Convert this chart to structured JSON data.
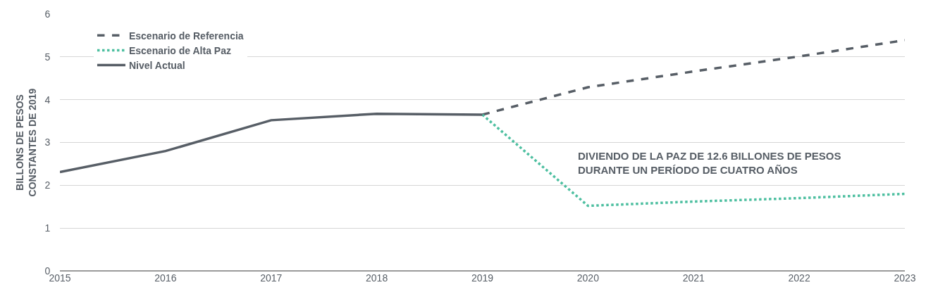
{
  "chart_data": {
    "type": "line",
    "ylabel": "BILLONS DE PESOS\nCONSTANTES DE 2019",
    "series": [
      {
        "name": "Escenario de Referencia",
        "color": "#575e66",
        "line_style": "dashed",
        "x": [
          2019,
          2020,
          2021,
          2022,
          2023
        ],
        "values": [
          3.65,
          4.29,
          4.66,
          5.01,
          5.39
        ]
      },
      {
        "name": "Escenario de Alta Paz",
        "color": "#4dbfa0",
        "line_style": "dotted",
        "x": [
          2019,
          2020,
          2021,
          2022,
          2023
        ],
        "values": [
          3.65,
          1.52,
          1.62,
          1.7,
          1.8
        ]
      },
      {
        "name": "Nivel Actual",
        "color": "#575e66",
        "line_style": "solid",
        "x": [
          2015,
          2016,
          2017,
          2018,
          2019
        ],
        "values": [
          2.31,
          2.8,
          3.52,
          3.67,
          3.65
        ]
      }
    ],
    "annotations": [
      "DIVIENDO DE LA PAZ DE 12.6 BILLONES DE PESOS\nDURANTE UN PERÍODO DE CUATRO AÑOS"
    ],
    "xlim": [
      2015,
      2023
    ],
    "xticks": [
      2015,
      2016,
      2017,
      2018,
      2019,
      2020,
      2021,
      2022,
      2023
    ],
    "ylim": [
      0,
      6
    ],
    "yticks": [
      0,
      1,
      2,
      3,
      4,
      5,
      6
    ],
    "grid": "y",
    "legend": "top left",
    "marker": "none"
  }
}
